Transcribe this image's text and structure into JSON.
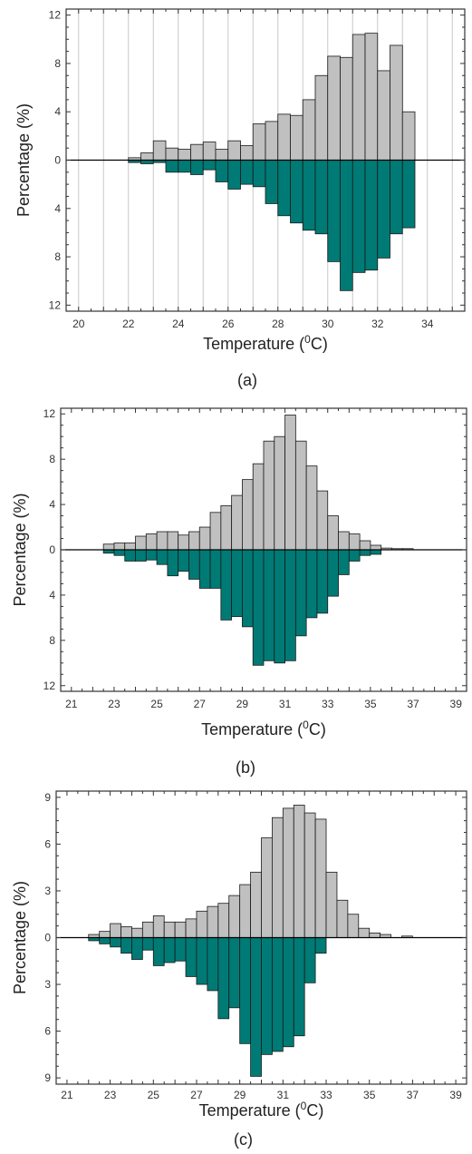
{
  "chart_data": [
    {
      "type": "bar",
      "panel_label": "(a)",
      "xlabel": "Temperature (",
      "xlabel_sup": "0",
      "xlabel_end": "C)",
      "ylabel": "Percentage (%)",
      "xlim": [
        19.5,
        35.5
      ],
      "ylim": [
        -12.5,
        12.5
      ],
      "xticks": [
        20,
        22,
        24,
        26,
        28,
        30,
        32,
        34
      ],
      "yticks": [
        12,
        8,
        4,
        0,
        4,
        8,
        12
      ],
      "ytick_values": [
        12,
        8,
        4,
        0,
        -4,
        -8,
        -12
      ],
      "grid_x": true,
      "bin_width": 0.5,
      "series": [
        {
          "role": "upper",
          "color": "#c0c0c0",
          "x": [
            22.0,
            22.5,
            23.0,
            23.5,
            24.0,
            24.5,
            25.0,
            25.5,
            26.0,
            26.5,
            27.0,
            27.5,
            28.0,
            28.5,
            29.0,
            29.5,
            30.0,
            30.5,
            31.0,
            31.5,
            32.0,
            32.5,
            33.0
          ],
          "values": [
            0.2,
            0.6,
            1.6,
            1.0,
            0.9,
            1.3,
            1.5,
            0.9,
            1.6,
            1.2,
            3.0,
            3.2,
            3.8,
            3.7,
            5.0,
            7.0,
            8.6,
            8.5,
            10.4,
            10.5,
            7.4,
            9.5,
            4.0
          ]
        },
        {
          "role": "lower",
          "color": "#007a75",
          "x": [
            22.0,
            22.5,
            23.0,
            23.5,
            24.0,
            24.5,
            25.0,
            25.5,
            26.0,
            26.5,
            27.0,
            27.5,
            28.0,
            28.5,
            29.0,
            29.5,
            30.0,
            30.5,
            31.0,
            31.5,
            32.0,
            32.5,
            33.0
          ],
          "values": [
            0.2,
            0.3,
            0.2,
            1.0,
            1.0,
            1.2,
            0.8,
            1.8,
            2.4,
            2.0,
            2.2,
            3.6,
            4.6,
            5.2,
            5.8,
            6.1,
            8.4,
            10.8,
            9.3,
            9.1,
            8.1,
            6.1,
            5.6
          ]
        }
      ]
    },
    {
      "type": "bar",
      "panel_label": "(b)",
      "xlabel": "Temperature (",
      "xlabel_sup": "0",
      "xlabel_end": "C)",
      "ylabel": "Percentage (%)",
      "xlim": [
        20.5,
        39.5
      ],
      "ylim": [
        -12.5,
        12.5
      ],
      "xticks": [
        21,
        23,
        25,
        27,
        29,
        31,
        33,
        35,
        37,
        39
      ],
      "yticks": [
        12,
        8,
        4,
        0,
        4,
        8,
        12
      ],
      "ytick_values": [
        12,
        8,
        4,
        0,
        -4,
        -8,
        -12
      ],
      "grid_x": false,
      "bin_width": 0.5,
      "series": [
        {
          "role": "upper",
          "color": "#c0c0c0",
          "x": [
            22.5,
            23.0,
            23.5,
            24.0,
            24.5,
            25.0,
            25.5,
            26.0,
            26.5,
            27.0,
            27.5,
            28.0,
            28.5,
            29.0,
            29.5,
            30.0,
            30.5,
            31.0,
            31.5,
            32.0,
            32.5,
            33.0,
            33.5,
            34.0,
            34.5,
            35.0,
            35.5,
            36.0,
            36.5
          ],
          "values": [
            0.5,
            0.6,
            0.6,
            1.2,
            1.4,
            1.6,
            1.6,
            1.3,
            1.6,
            2.0,
            3.3,
            3.9,
            4.8,
            6.2,
            7.6,
            9.6,
            10.0,
            11.9,
            9.6,
            7.4,
            5.2,
            3.0,
            1.6,
            1.4,
            0.8,
            0.4,
            0.15,
            0.1,
            0.1
          ]
        },
        {
          "role": "lower",
          "color": "#007a75",
          "x": [
            22.5,
            23.0,
            23.5,
            24.0,
            24.5,
            25.0,
            25.5,
            26.0,
            26.5,
            27.0,
            27.5,
            28.0,
            28.5,
            29.0,
            29.5,
            30.0,
            30.5,
            31.0,
            31.5,
            32.0,
            32.5,
            33.0,
            33.5,
            34.0,
            34.5,
            35.0
          ],
          "values": [
            0.3,
            0.5,
            1.0,
            1.0,
            0.9,
            1.3,
            2.3,
            1.9,
            2.6,
            3.4,
            3.4,
            6.2,
            5.9,
            6.8,
            10.2,
            9.8,
            10.0,
            9.8,
            7.6,
            6.0,
            5.6,
            4.1,
            2.2,
            1.0,
            0.5,
            0.4
          ]
        }
      ]
    },
    {
      "type": "bar",
      "panel_label": "(c)",
      "xlabel": "Temperature (",
      "xlabel_sup": "0",
      "xlabel_end": "C)",
      "ylabel": "Percentage (%)",
      "xlim": [
        20.5,
        39.5
      ],
      "ylim": [
        -9.4,
        9.4
      ],
      "xticks": [
        21,
        23,
        25,
        27,
        29,
        31,
        33,
        35,
        37,
        39
      ],
      "yticks": [
        9,
        6,
        3,
        0,
        3,
        6,
        9
      ],
      "ytick_values": [
        9,
        6,
        3,
        0,
        -3,
        -6,
        -9
      ],
      "grid_x": false,
      "bin_width": 0.5,
      "series": [
        {
          "role": "upper",
          "color": "#c0c0c0",
          "x": [
            22.0,
            22.5,
            23.0,
            23.5,
            24.0,
            24.5,
            25.0,
            25.5,
            26.0,
            26.5,
            27.0,
            27.5,
            28.0,
            28.5,
            29.0,
            29.5,
            30.0,
            30.5,
            31.0,
            31.5,
            32.0,
            32.5,
            33.0,
            33.5,
            34.0,
            34.5,
            35.0,
            35.5,
            36.5
          ],
          "values": [
            0.2,
            0.4,
            0.9,
            0.7,
            0.6,
            1.0,
            1.4,
            1.0,
            1.0,
            1.2,
            1.7,
            2.0,
            2.2,
            2.7,
            3.4,
            4.2,
            6.4,
            7.7,
            8.3,
            8.5,
            8.0,
            7.6,
            4.2,
            2.4,
            1.5,
            0.6,
            0.3,
            0.2,
            0.1
          ]
        },
        {
          "role": "lower",
          "color": "#007a75",
          "x": [
            22.0,
            22.5,
            23.0,
            23.5,
            24.0,
            24.5,
            25.0,
            25.5,
            26.0,
            26.5,
            27.0,
            27.5,
            28.0,
            28.5,
            29.0,
            29.5,
            30.0,
            30.5,
            31.0,
            31.5,
            32.0,
            32.5
          ],
          "values": [
            0.2,
            0.4,
            0.6,
            1.0,
            1.4,
            0.8,
            1.8,
            1.6,
            1.5,
            2.5,
            3.0,
            3.4,
            5.2,
            4.5,
            6.8,
            8.9,
            7.5,
            7.3,
            7.0,
            6.3,
            2.9,
            1.0
          ]
        }
      ]
    }
  ]
}
